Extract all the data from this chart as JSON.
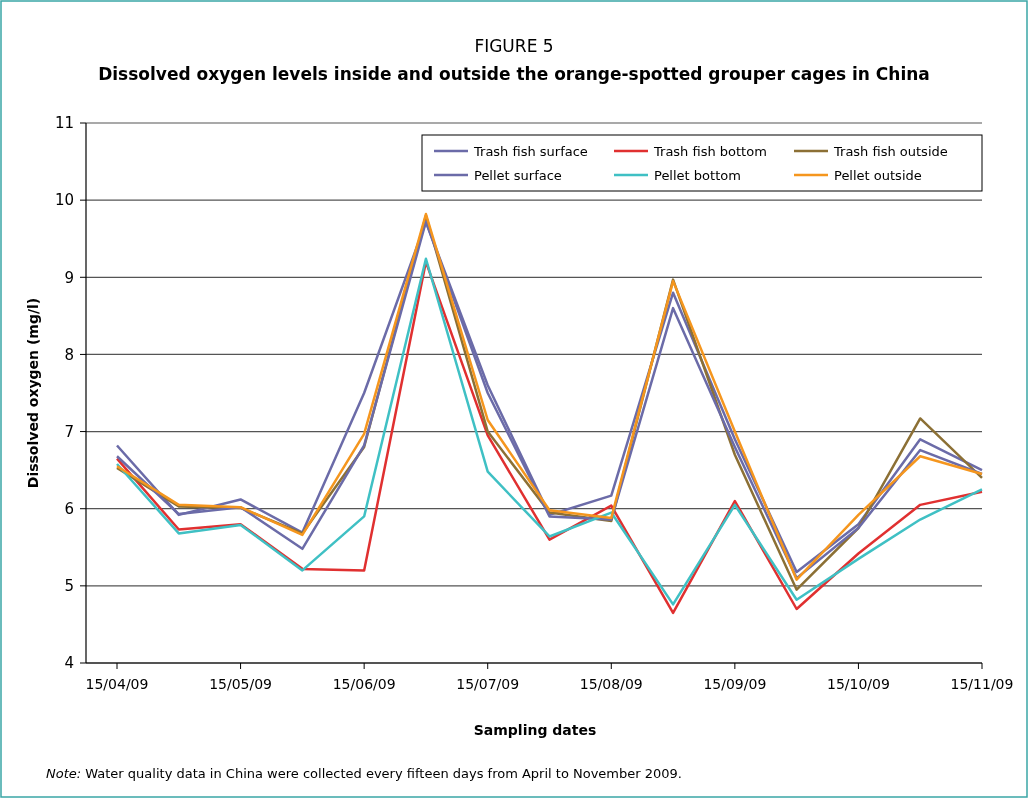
{
  "chart_data": {
    "type": "line",
    "title": "FIGURE 5",
    "subtitle": "Dissolved oxygen levels inside and outside the orange-spotted grouper cages in China",
    "xlabel": "Sampling dates",
    "ylabel": "Dissolved oxygen (mg/l)",
    "annotations": [
      "Note: Water quality data in China were collected every fifteen days from April to November 2009."
    ],
    "categories": [
      "15/04/09",
      null,
      "15/05/09",
      null,
      "15/06/09",
      null,
      "15/07/09",
      null,
      "15/08/09",
      null,
      "15/09/09",
      null,
      "15/10/09",
      null,
      "15/11/09"
    ],
    "series": [
      {
        "name": "Trash fish surface",
        "color": "#6b6ba8",
        "values": [
          6.82,
          5.92,
          6.12,
          5.69,
          7.5,
          9.72,
          7.6,
          5.92,
          6.17,
          8.8,
          6.9,
          5.18,
          5.8,
          6.9,
          6.5
        ]
      },
      {
        "name": "Trash fish bottom",
        "color": "#e03030",
        "values": [
          6.65,
          5.73,
          5.8,
          5.22,
          5.2,
          9.2,
          6.95,
          5.6,
          6.04,
          4.65,
          6.1,
          4.7,
          5.42,
          6.05,
          6.22
        ]
      },
      {
        "name": "Trash fish outside",
        "color": "#8c7035",
        "values": [
          6.53,
          6.03,
          6.01,
          5.68,
          6.8,
          9.8,
          7.0,
          5.95,
          5.84,
          8.97,
          6.7,
          4.95,
          5.75,
          7.17,
          6.4
        ]
      },
      {
        "name": "Pellet surface",
        "color": "#6b6ba8",
        "values": [
          6.68,
          5.93,
          6.02,
          5.48,
          6.82,
          9.72,
          7.5,
          5.9,
          5.86,
          8.6,
          6.8,
          5.1,
          5.75,
          6.76,
          6.45
        ]
      },
      {
        "name": "Pellet bottom",
        "color": "#3fc0c4",
        "values": [
          6.58,
          5.68,
          5.79,
          5.2,
          5.9,
          9.24,
          6.48,
          5.64,
          5.95,
          4.76,
          6.05,
          4.82,
          5.35,
          5.86,
          6.25
        ]
      },
      {
        "name": "Pellet outside",
        "color": "#f5961e",
        "values": [
          6.55,
          6.05,
          6.02,
          5.66,
          6.97,
          9.82,
          7.15,
          5.98,
          5.88,
          8.95,
          7.0,
          5.08,
          5.92,
          6.68,
          6.45
        ]
      }
    ],
    "ylim": [
      4,
      11
    ],
    "yticks": [
      4,
      5,
      6,
      7,
      8,
      9,
      10,
      11
    ],
    "grid": "y",
    "legend": "top right",
    "marker": "none",
    "line_style": "solid"
  }
}
